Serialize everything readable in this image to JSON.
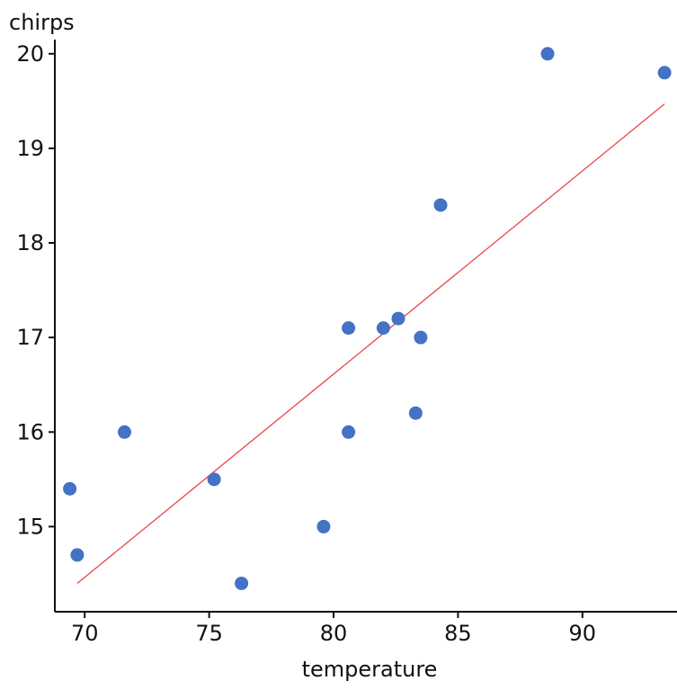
{
  "chart_data": {
    "type": "scatter",
    "title": "",
    "xlabel": "temperature",
    "ylabel": "chirps",
    "xlim": [
      68.8,
      93.8
    ],
    "ylim": [
      14.1,
      20.15
    ],
    "xticks": [
      70,
      75,
      80,
      85,
      90
    ],
    "yticks": [
      15,
      16,
      17,
      18,
      19,
      20
    ],
    "grid": false,
    "legend": "none",
    "series": [
      {
        "points": [
          {
            "x": 88.6,
            "y": 20.0
          },
          {
            "x": 93.3,
            "y": 19.8
          },
          {
            "x": 84.3,
            "y": 18.4
          },
          {
            "x": 80.6,
            "y": 17.1
          },
          {
            "x": 82.0,
            "y": 17.1
          },
          {
            "x": 82.6,
            "y": 17.2
          },
          {
            "x": 83.5,
            "y": 17.0
          },
          {
            "x": 71.6,
            "y": 16.0
          },
          {
            "x": 80.6,
            "y": 16.0
          },
          {
            "x": 83.3,
            "y": 16.2
          },
          {
            "x": 69.4,
            "y": 15.4
          },
          {
            "x": 75.2,
            "y": 15.5
          },
          {
            "x": 79.6,
            "y": 15.0
          },
          {
            "x": 69.7,
            "y": 14.7
          },
          {
            "x": 76.3,
            "y": 14.4
          }
        ],
        "color": "#4472c4"
      }
    ],
    "trendline": {
      "type": "linear",
      "from": {
        "x": 69.7,
        "y": 14.4
      },
      "to": {
        "x": 93.3,
        "y": 19.47
      },
      "color": "#e8464b"
    }
  }
}
